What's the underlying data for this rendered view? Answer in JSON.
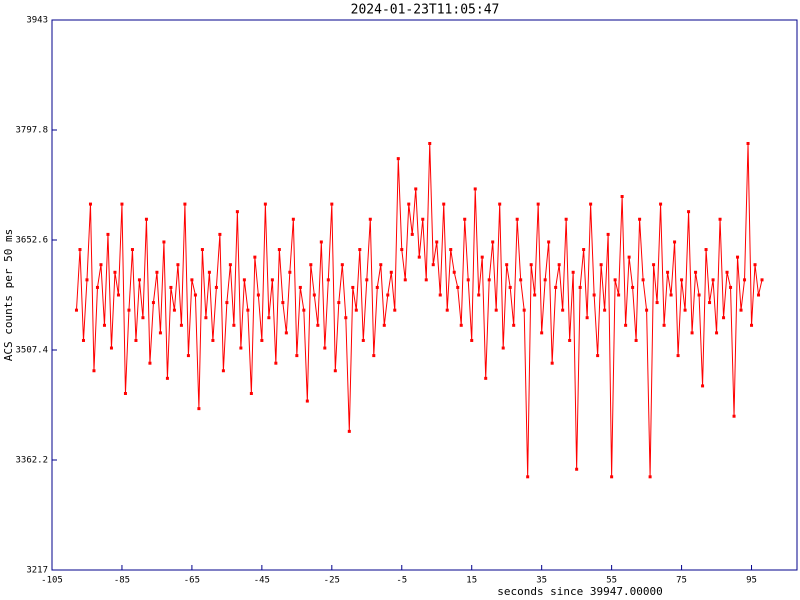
{
  "chart_data": {
    "type": "line",
    "title": "2024-01-23T11:05:47",
    "x_label": "seconds since 39947.00000",
    "y_label": "ACS counts per 50 ms",
    "xlim": [
      -105,
      108
    ],
    "ylim": [
      3217,
      3943
    ],
    "xticks": [
      -105,
      -85,
      -65,
      -45,
      -25,
      -5,
      15,
      35,
      55,
      75,
      95
    ],
    "yticks": [
      3217,
      3362.2,
      3507.4,
      3652.6,
      3797.8,
      3943
    ],
    "axis_color": "#00008b",
    "markers": true,
    "x": [
      -98,
      -97,
      -96,
      -95,
      -94,
      -93,
      -92,
      -91,
      -90,
      -89,
      -88,
      -87,
      -86,
      -85,
      -84,
      -83,
      -82,
      -81,
      -80,
      -79,
      -78,
      -77,
      -76,
      -75,
      -74,
      -73,
      -72,
      -71,
      -70,
      -69,
      -68,
      -67,
      -66,
      -65,
      -64,
      -63,
      -62,
      -61,
      -60,
      -59,
      -58,
      -57,
      -56,
      -55,
      -54,
      -53,
      -52,
      -51,
      -50,
      -49,
      -48,
      -47,
      -46,
      -45,
      -44,
      -43,
      -42,
      -41,
      -40,
      -39,
      -38,
      -37,
      -36,
      -35,
      -34,
      -33,
      -32,
      -31,
      -30,
      -29,
      -28,
      -27,
      -26,
      -25,
      -24,
      -23,
      -22,
      -21,
      -20,
      -19,
      -18,
      -17,
      -16,
      -15,
      -14,
      -13,
      -12,
      -11,
      -10,
      -9,
      -8,
      -7,
      -6,
      -5,
      -4,
      -3,
      -2,
      -1,
      0,
      1,
      2,
      3,
      4,
      5,
      6,
      7,
      8,
      9,
      10,
      11,
      12,
      13,
      14,
      15,
      16,
      17,
      18,
      19,
      20,
      21,
      22,
      23,
      24,
      25,
      26,
      27,
      28,
      29,
      30,
      31,
      32,
      33,
      34,
      35,
      36,
      37,
      38,
      39,
      40,
      41,
      42,
      43,
      44,
      45,
      46,
      47,
      48,
      49,
      50,
      51,
      52,
      53,
      54,
      55,
      56,
      57,
      58,
      59,
      60,
      61,
      62,
      63,
      64,
      65,
      66,
      67,
      68,
      69,
      70,
      71,
      72,
      73,
      74,
      75,
      76,
      77,
      78,
      79,
      80,
      81,
      82,
      83,
      84,
      85,
      86,
      87,
      88,
      89,
      90,
      91,
      92,
      93,
      94,
      95,
      96,
      97,
      98
    ],
    "series": [
      {
        "color": "#ff0000",
        "values": [
          3560,
          3640,
          3520,
          3600,
          3700,
          3480,
          3590,
          3620,
          3540,
          3660,
          3510,
          3610,
          3580,
          3700,
          3450,
          3560,
          3640,
          3520,
          3600,
          3550,
          3680,
          3490,
          3570,
          3610,
          3530,
          3650,
          3470,
          3590,
          3560,
          3620,
          3540,
          3700,
          3500,
          3600,
          3580,
          3430,
          3640,
          3550,
          3610,
          3520,
          3590,
          3660,
          3480,
          3570,
          3620,
          3540,
          3690,
          3510,
          3600,
          3560,
          3450,
          3630,
          3580,
          3520,
          3700,
          3550,
          3600,
          3490,
          3640,
          3570,
          3530,
          3610,
          3680,
          3500,
          3590,
          3560,
          3440,
          3620,
          3580,
          3540,
          3650,
          3510,
          3600,
          3700,
          3480,
          3570,
          3620,
          3550,
          3400,
          3590,
          3560,
          3640,
          3520,
          3600,
          3680,
          3500,
          3590,
          3620,
          3540,
          3580,
          3610,
          3560,
          3760,
          3640,
          3600,
          3700,
          3660,
          3720,
          3630,
          3680,
          3600,
          3780,
          3620,
          3650,
          3580,
          3700,
          3560,
          3640,
          3610,
          3590,
          3540,
          3680,
          3600,
          3520,
          3720,
          3580,
          3630,
          3470,
          3600,
          3650,
          3560,
          3700,
          3510,
          3620,
          3590,
          3540,
          3680,
          3600,
          3560,
          3340,
          3620,
          3580,
          3700,
          3530,
          3600,
          3650,
          3490,
          3590,
          3620,
          3560,
          3680,
          3520,
          3610,
          3350,
          3590,
          3640,
          3550,
          3700,
          3580,
          3500,
          3620,
          3560,
          3660,
          3340,
          3600,
          3580,
          3710,
          3540,
          3630,
          3590,
          3520,
          3680,
          3600,
          3560,
          3340,
          3620,
          3570,
          3700,
          3540,
          3610,
          3580,
          3650,
          3500,
          3600,
          3560,
          3690,
          3530,
          3610,
          3580,
          3460,
          3640,
          3570,
          3600,
          3530,
          3680,
          3550,
          3610,
          3590,
          3420,
          3630,
          3560,
          3600,
          3780,
          3540,
          3620,
          3580,
          3600
        ]
      }
    ]
  }
}
